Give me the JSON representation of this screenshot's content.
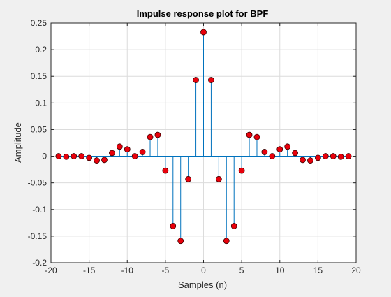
{
  "chart_data": {
    "type": "stem",
    "title": "Impulse response plot for BPF",
    "xlabel": "Samples (n)",
    "ylabel": "Amplitude",
    "xlim": [
      -20,
      20
    ],
    "ylim": [
      -0.2,
      0.25
    ],
    "xticks": [
      -20,
      -15,
      -10,
      -5,
      0,
      5,
      10,
      15,
      20
    ],
    "yticks": [
      -0.2,
      -0.15,
      -0.1,
      -0.05,
      0,
      0.05,
      0.1,
      0.15,
      0.2,
      0.25
    ],
    "grid": true,
    "colors": {
      "stem": "#0072bd",
      "marker_fill": "#e8000b",
      "marker_edge": "#3a0000",
      "axes_bg": "#ffffff",
      "figure_bg": "#f0f0f0"
    },
    "x": [
      -19,
      -18,
      -17,
      -16,
      -15,
      -14,
      -13,
      -12,
      -11,
      -10,
      -9,
      -8,
      -7,
      -6,
      -5,
      -4,
      -3,
      -2,
      -1,
      0,
      1,
      2,
      3,
      4,
      5,
      6,
      7,
      8,
      9,
      10,
      11,
      12,
      13,
      14,
      15,
      16,
      17,
      18,
      19
    ],
    "y": [
      0.0,
      -0.001,
      0.0,
      0.0,
      -0.003,
      -0.008,
      -0.007,
      0.006,
      0.018,
      0.013,
      0.0,
      0.008,
      0.036,
      0.04,
      -0.027,
      -0.131,
      -0.159,
      -0.043,
      0.143,
      0.233,
      0.143,
      -0.043,
      -0.159,
      -0.131,
      -0.027,
      0.04,
      0.036,
      0.008,
      0.0,
      0.013,
      0.018,
      0.006,
      -0.007,
      -0.008,
      -0.003,
      0.0,
      0.0,
      -0.001,
      0.0
    ]
  }
}
